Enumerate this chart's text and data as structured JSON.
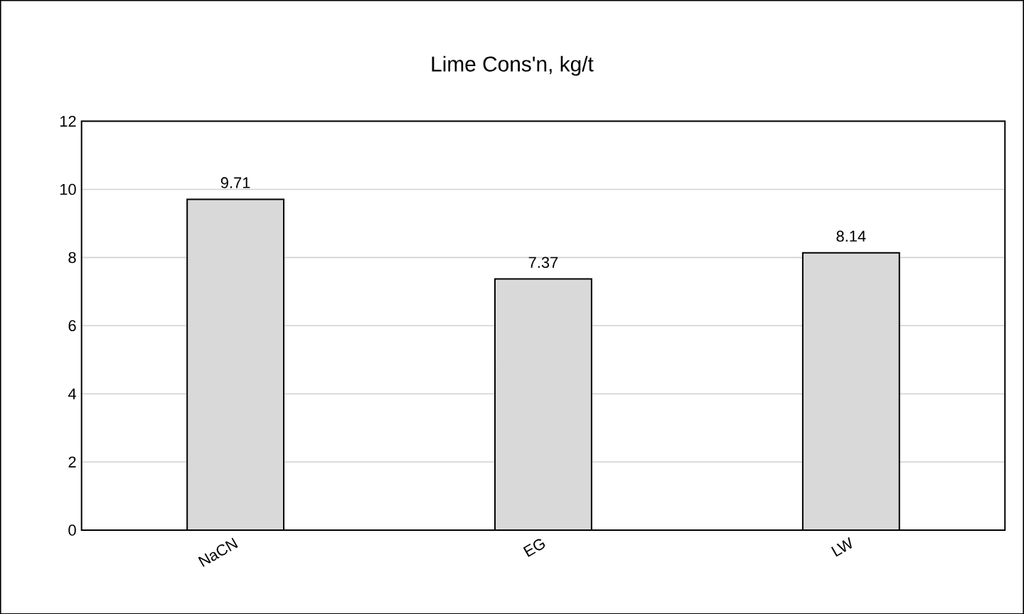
{
  "chart_data": {
    "type": "bar",
    "title": "Lime Cons'n, kg/t",
    "categories": [
      "NaCN",
      "EG",
      "LW"
    ],
    "values": [
      9.71,
      7.37,
      8.14
    ],
    "color": "#d9d9d9",
    "ylim": [
      0,
      12
    ],
    "yticks": [
      0,
      2,
      4,
      6,
      8,
      10,
      12
    ],
    "grid": "y",
    "data_labels": true
  }
}
